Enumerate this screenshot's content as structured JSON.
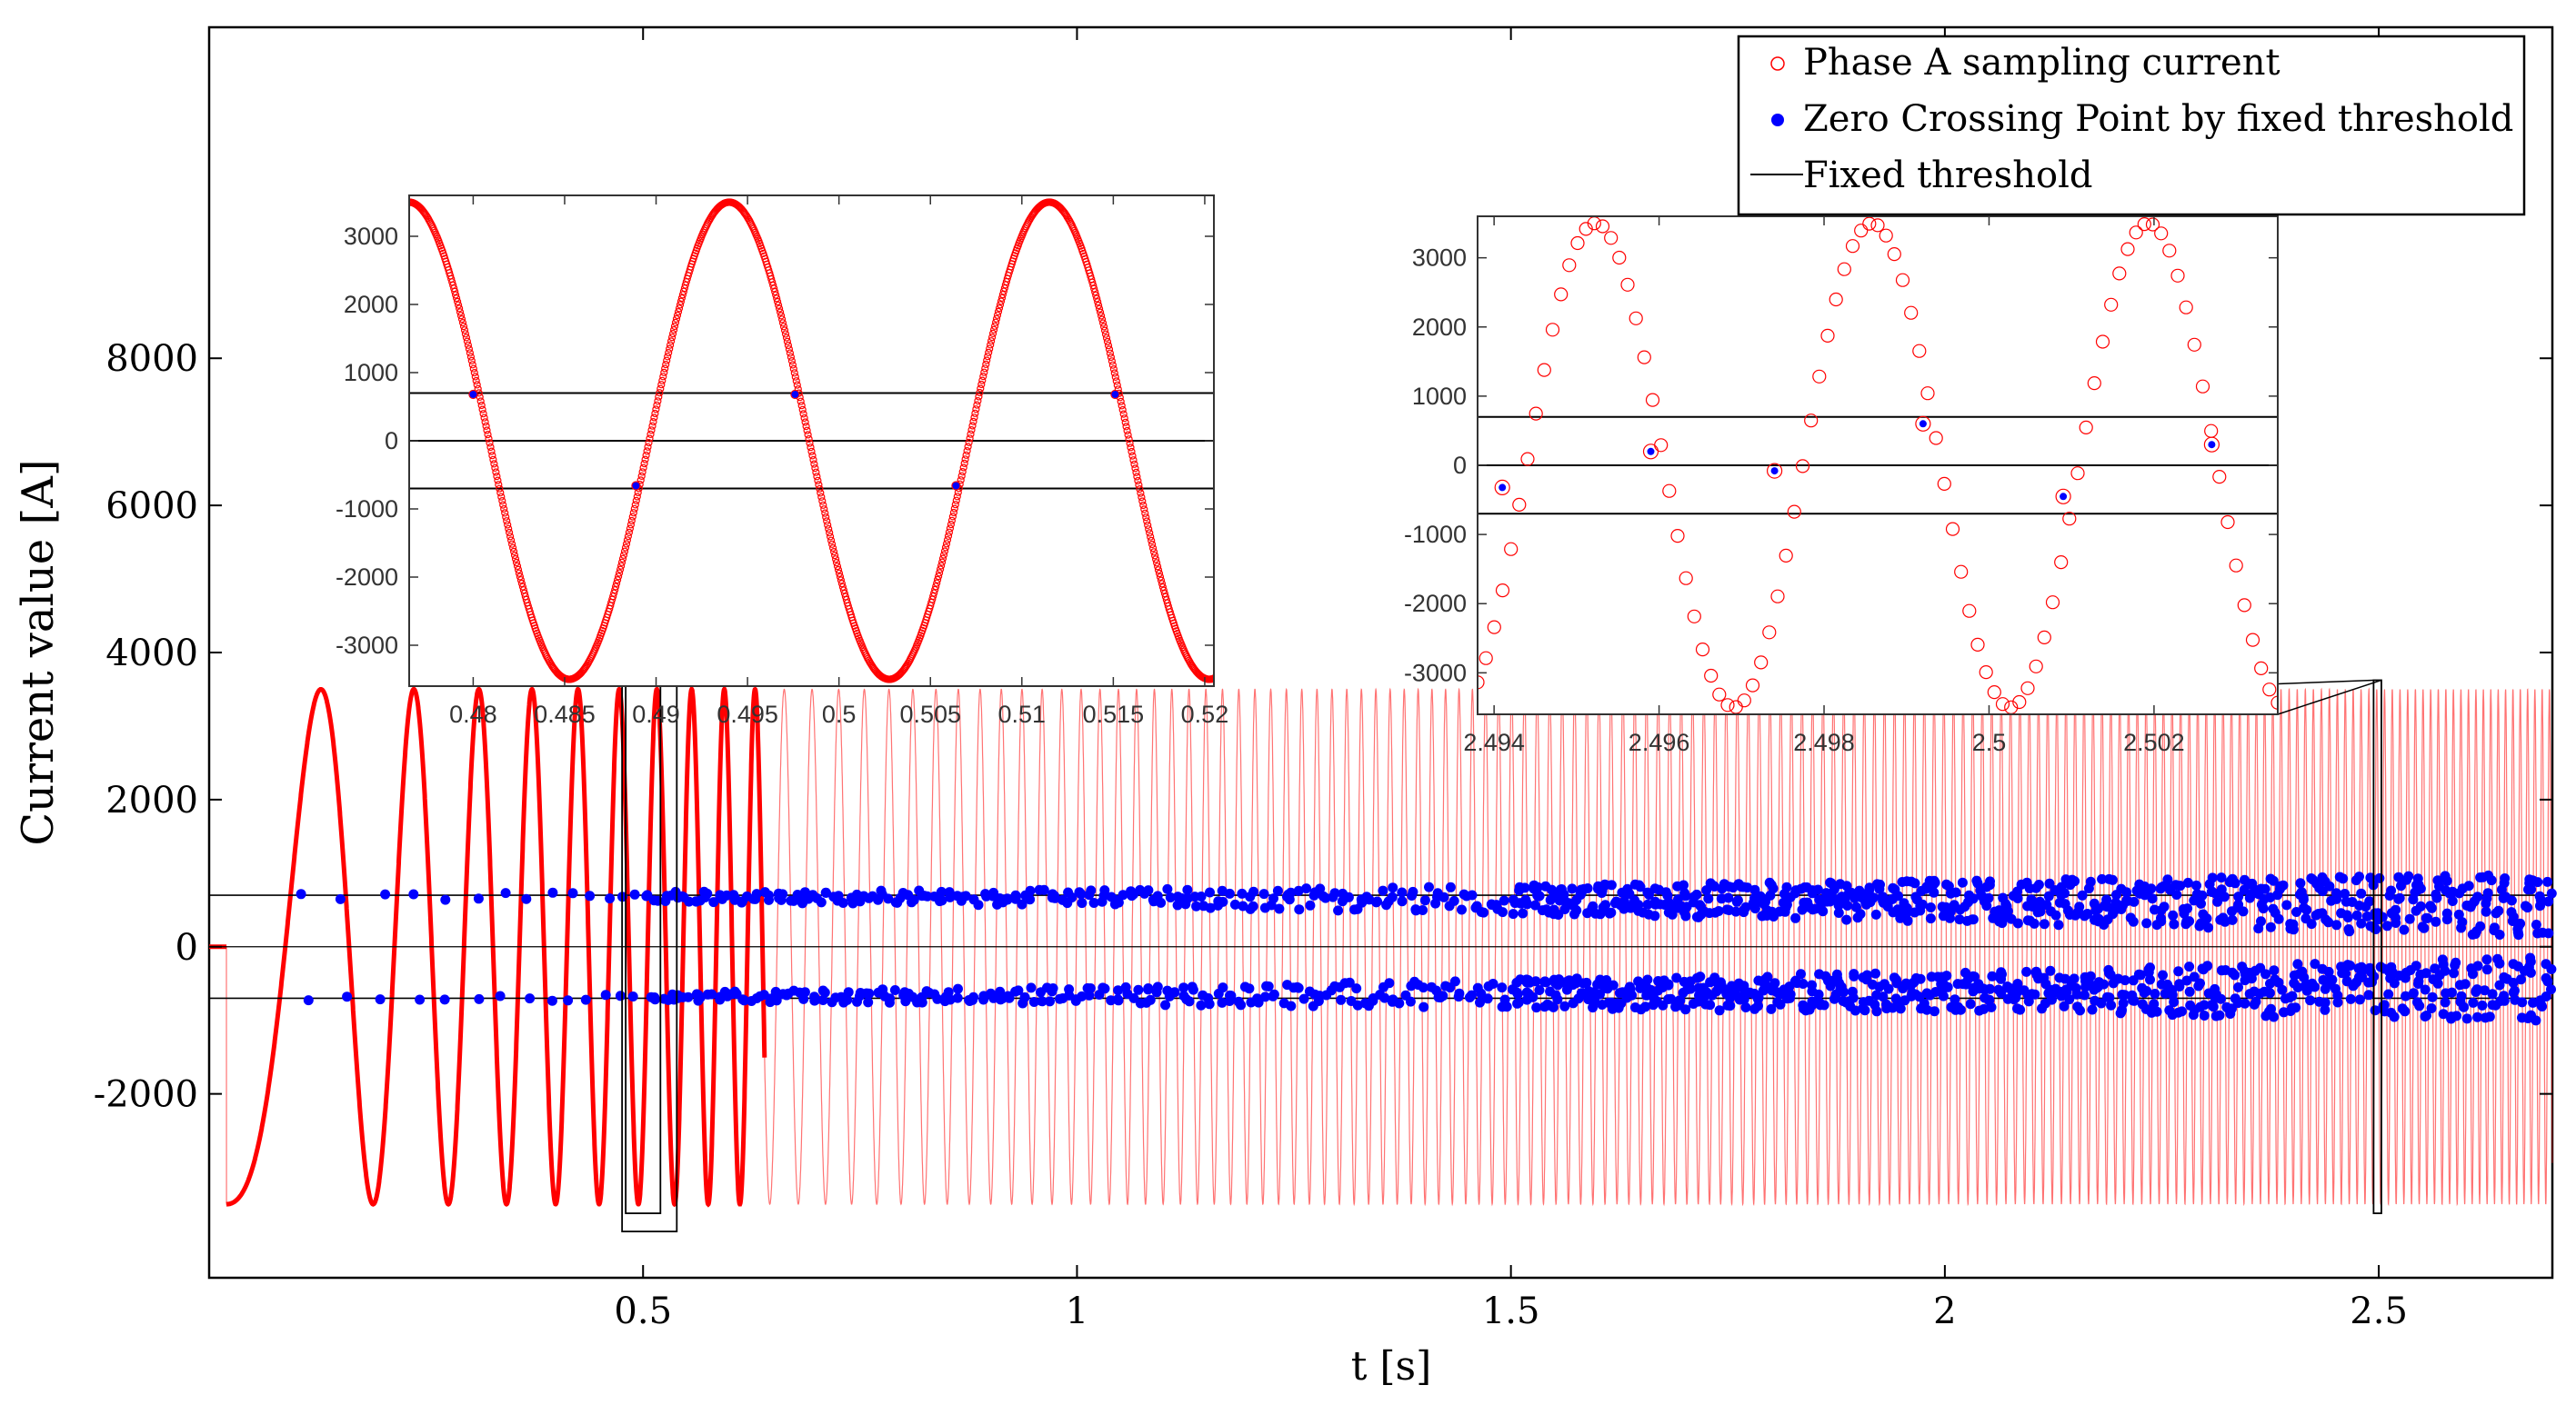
{
  "chart_data": [
    {
      "type": "scatter",
      "id": "main",
      "xlabel": "t [s]",
      "ylabel": "Current value [A]",
      "xlim": [
        0,
        2.7
      ],
      "ylim": [
        -4500,
        12500
      ],
      "xticks": [
        0.5,
        1,
        1.5,
        2,
        2.5
      ],
      "xtick_labels": [
        "0.5",
        "1",
        "1.5",
        "2",
        "2.5"
      ],
      "yticks": [
        -2000,
        0,
        2000,
        4000,
        6000,
        8000
      ],
      "ytick_labels": [
        "-2000",
        "0",
        "2000",
        "4000",
        "6000",
        "8000"
      ],
      "series": [
        {
          "name": "Phase A sampling current",
          "description": "chirp sinusoid, amplitude 3500 A, starting near 0 Hz and frequency increasing with time",
          "amplitude": 3500,
          "start_time": 0.02
        },
        {
          "name": "Zero Crossing Point by fixed threshold",
          "description": "points near +700 A and -700 A thresholds, scatter growing with time",
          "levels": [
            700,
            -700
          ]
        },
        {
          "name": "Fixed threshold",
          "values": [
            700,
            0,
            -700
          ]
        }
      ],
      "zoom_regions": [
        {
          "x": [
            0.48,
            0.52
          ],
          "y": [
            -3500,
            3500
          ]
        },
        {
          "x": [
            2.494,
            2.503
          ],
          "y": [
            -3500,
            3500
          ]
        }
      ],
      "legend": {
        "position": "top-right",
        "entries": [
          "Phase A sampling current",
          "Zero Crossing Point by fixed threshold",
          "Fixed threshold"
        ]
      }
    },
    {
      "type": "scatter",
      "id": "inset1",
      "title": "",
      "xlim": [
        0.4765,
        0.5205
      ],
      "ylim": [
        -3600,
        3600
      ],
      "xticks": [
        0.48,
        0.485,
        0.49,
        0.495,
        0.5,
        0.505,
        0.51,
        0.515,
        0.52
      ],
      "xtick_labels": [
        "0.48",
        "0.485",
        "0.49",
        "0.495",
        "0.5",
        "0.505",
        "0.51",
        "0.515",
        "0.52"
      ],
      "yticks": [
        -3000,
        -2000,
        -1000,
        0,
        1000,
        2000,
        3000
      ],
      "ytick_labels": [
        "-3000",
        "-2000",
        "-1000",
        "0",
        "1000",
        "2000",
        "3000"
      ],
      "thresholds": [
        700,
        0,
        -700
      ],
      "wave": {
        "amplitude": 3500,
        "period": 0.0175,
        "peak_at": 0.4765
      },
      "zero_crossings": [
        {
          "x": 0.48,
          "y": 680
        },
        {
          "x": 0.4889,
          "y": -660
        },
        {
          "x": 0.4976,
          "y": 680
        },
        {
          "x": 0.5064,
          "y": -660
        },
        {
          "x": 0.5151,
          "y": 680
        }
      ]
    },
    {
      "type": "scatter",
      "id": "inset2",
      "xlim": [
        2.4938,
        2.5035
      ],
      "ylim": [
        -3600,
        3600
      ],
      "xticks": [
        2.494,
        2.496,
        2.498,
        2.5,
        2.502
      ],
      "xtick_labels": [
        "2.494",
        "2.496",
        "2.498",
        "2.5",
        "2.502"
      ],
      "yticks": [
        -3000,
        -2000,
        -1000,
        0,
        1000,
        2000,
        3000
      ],
      "ytick_labels": [
        "-3000",
        "-2000",
        "-1000",
        "0",
        "1000",
        "2000",
        "3000"
      ],
      "thresholds": [
        700,
        0,
        -700
      ],
      "wave": {
        "amplitude": 3500,
        "period": 0.00335,
        "peak_at": 2.49523
      },
      "samples": 96,
      "zero_crossings": [
        {
          "x": 2.4941,
          "y": -320
        },
        {
          "x": 2.4959,
          "y": 200
        },
        {
          "x": 2.4974,
          "y": -80
        },
        {
          "x": 2.4992,
          "y": 600
        },
        {
          "x": 2.5009,
          "y": -450
        },
        {
          "x": 2.5027,
          "y": 300
        }
      ]
    }
  ]
}
